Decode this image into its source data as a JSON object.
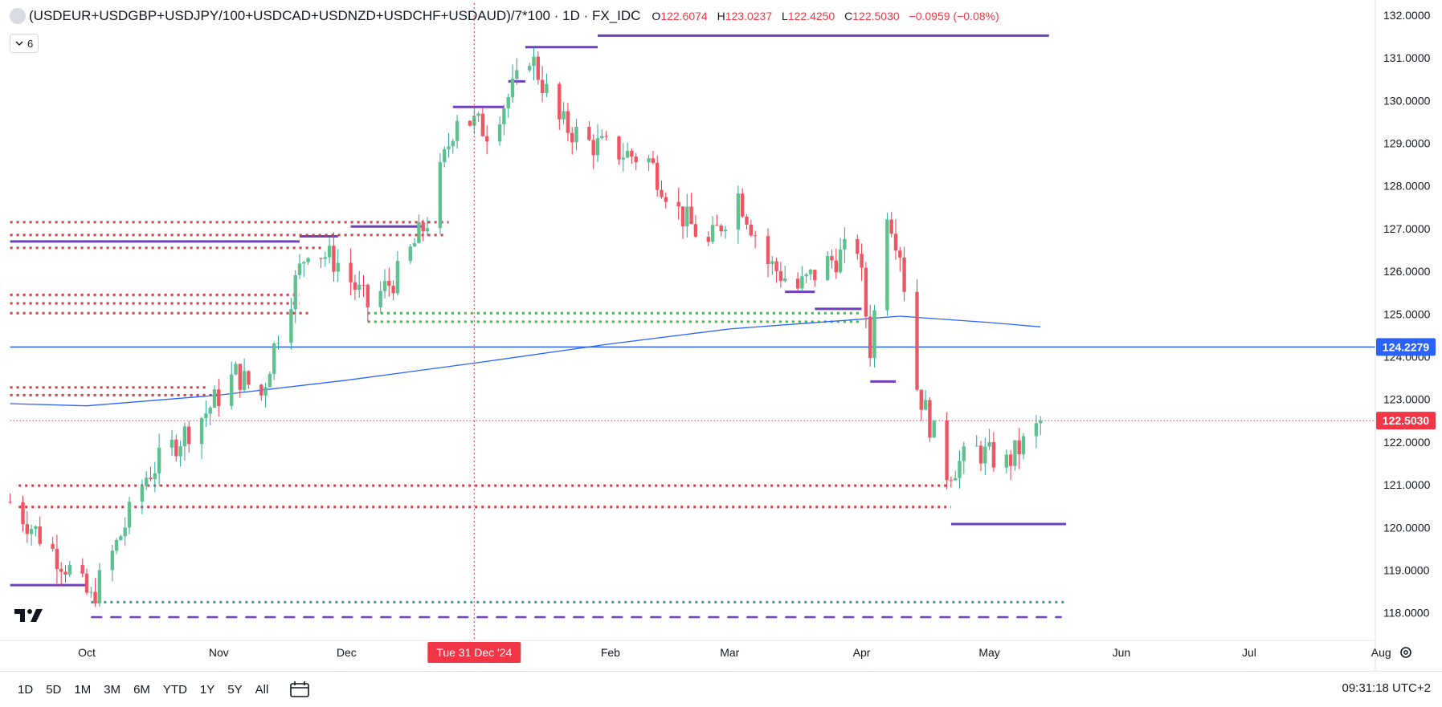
{
  "legend": {
    "symbol": "(USDEUR+USDGBP+USDJPY/100+USDCAD+USDNZD+USDCHF+USDAUD)/7*100 · 1D · FX_IDC",
    "open_label": "O",
    "open": "122.6074",
    "high_label": "H",
    "high": "123.0237",
    "low_label": "L",
    "low": "122.4250",
    "close_label": "C",
    "close": "122.5030",
    "change": "−0.0959 (−0.08%)"
  },
  "indicator_toggle": {
    "icon": "chevron-down-icon",
    "count": "6"
  },
  "bottom_bar": {
    "ranges": [
      "1D",
      "5D",
      "1M",
      "3M",
      "6M",
      "YTD",
      "1Y",
      "5Y",
      "All"
    ],
    "clock": "09:31:18 UTC+2"
  },
  "colors": {
    "up": "#26a69a",
    "down": "#f23645",
    "up_body": "#5fc18d",
    "down_body": "#ef5664",
    "ma": "#2962ff",
    "level_line": "#2962ff",
    "resistance_dotted": "#e0333d",
    "support_dotted": "#4caf50",
    "teal_dotted": "#26a69a",
    "purple": "#6f3fbf"
  },
  "chart_data": {
    "type": "candlestick",
    "title": "(USDEUR+USDGBP+USDJPY/100+USDCAD+USDNZD+USDCHF+USDAUD)/7*100",
    "interval": "1D",
    "source": "FX_IDC",
    "x_axis": {
      "tick_labels": [
        "Oct",
        "Nov",
        "Dec",
        "Tue 31 Dec '24",
        "Feb",
        "Mar",
        "Apr",
        "May",
        "Jun",
        "Jul",
        "Aug"
      ],
      "tick_dates": [
        "2024-10-01",
        "2024-11-01",
        "2024-12-01",
        "2024-12-31",
        "2025-02-01",
        "2025-03-01",
        "2025-04-01",
        "2025-05-01",
        "2025-06-01",
        "2025-07-01",
        "2025-08-01"
      ],
      "highlighted_label": "Tue 31 Dec '24",
      "range": [
        "2024-09-13",
        "2025-08-15"
      ]
    },
    "y_axis": {
      "tick_labels": [
        "132.0000",
        "131.0000",
        "130.0000",
        "129.0000",
        "128.0000",
        "127.0000",
        "126.0000",
        "125.0000",
        "124.0000",
        "123.0000",
        "122.0000",
        "121.0000",
        "120.0000",
        "119.0000",
        "118.0000"
      ],
      "range": [
        117.7,
        132.3
      ],
      "position": "right"
    },
    "price_tags": [
      {
        "label": "124.2279",
        "value": 124.2279,
        "color": "#2962ff"
      },
      {
        "label": "122.5030",
        "value": 122.503,
        "color": "#f23645"
      }
    ],
    "close_path": [
      {
        "date": "2024-09-13",
        "close": 120.6
      },
      {
        "date": "2024-09-20",
        "close": 119.8
      },
      {
        "date": "2024-09-27",
        "close": 119.0
      },
      {
        "date": "2024-10-02",
        "close": 118.3
      },
      {
        "date": "2024-10-08",
        "close": 119.6
      },
      {
        "date": "2024-10-15",
        "close": 121.2
      },
      {
        "date": "2024-10-22",
        "close": 122.0
      },
      {
        "date": "2024-10-29",
        "close": 122.7
      },
      {
        "date": "2024-11-05",
        "close": 123.6
      },
      {
        "date": "2024-11-11",
        "close": 123.1
      },
      {
        "date": "2024-11-15",
        "close": 124.6
      },
      {
        "date": "2024-11-22",
        "close": 126.6
      },
      {
        "date": "2024-11-29",
        "close": 126.2
      },
      {
        "date": "2024-12-06",
        "close": 125.2
      },
      {
        "date": "2024-12-13",
        "close": 125.9
      },
      {
        "date": "2024-12-20",
        "close": 127.2
      },
      {
        "date": "2024-12-27",
        "close": 129.7
      },
      {
        "date": "2025-01-03",
        "close": 129.3
      },
      {
        "date": "2025-01-10",
        "close": 130.4
      },
      {
        "date": "2025-01-13",
        "close": 131.1
      },
      {
        "date": "2025-01-20",
        "close": 129.5
      },
      {
        "date": "2025-01-27",
        "close": 129.0
      },
      {
        "date": "2025-02-03",
        "close": 128.8
      },
      {
        "date": "2025-02-10",
        "close": 128.6
      },
      {
        "date": "2025-02-17",
        "close": 127.4
      },
      {
        "date": "2025-02-24",
        "close": 126.6
      },
      {
        "date": "2025-03-03",
        "close": 127.8
      },
      {
        "date": "2025-03-10",
        "close": 126.2
      },
      {
        "date": "2025-03-17",
        "close": 125.6
      },
      {
        "date": "2025-03-24",
        "close": 126.2
      },
      {
        "date": "2025-03-31",
        "close": 126.6
      },
      {
        "date": "2025-04-03",
        "close": 124.2
      },
      {
        "date": "2025-04-07",
        "close": 127.5
      },
      {
        "date": "2025-04-10",
        "close": 126.5
      },
      {
        "date": "2025-04-14",
        "close": 123.3
      },
      {
        "date": "2025-04-21",
        "close": 121.3
      },
      {
        "date": "2025-04-28",
        "close": 121.8
      },
      {
        "date": "2025-05-05",
        "close": 121.5
      },
      {
        "date": "2025-05-12",
        "close": 122.3
      },
      {
        "date": "2025-05-13",
        "close": 122.503
      }
    ],
    "moving_average": [
      {
        "date": "2024-09-13",
        "value": 122.9
      },
      {
        "date": "2024-10-01",
        "value": 122.85
      },
      {
        "date": "2024-11-01",
        "value": 123.1
      },
      {
        "date": "2024-12-01",
        "value": 123.45
      },
      {
        "date": "2024-12-31",
        "value": 123.85
      },
      {
        "date": "2025-02-01",
        "value": 124.3
      },
      {
        "date": "2025-03-01",
        "value": 124.65
      },
      {
        "date": "2025-04-01",
        "value": 124.88
      },
      {
        "date": "2025-04-10",
        "value": 124.95
      },
      {
        "date": "2025-05-01",
        "value": 124.8
      },
      {
        "date": "2025-05-13",
        "value": 124.7
      }
    ],
    "horizontal_lines": [
      {
        "value": 124.2279,
        "style": "solid",
        "color": "#2962ff",
        "from": "2024-09-13",
        "to": "end"
      },
      {
        "value": 122.503,
        "style": "dotted-thin",
        "color": "#f23645",
        "from": "2024-09-13",
        "to": "end"
      },
      {
        "value": 131.52,
        "style": "solid",
        "color": "#6f3fbf",
        "from": "2025-01-29",
        "to": "2025-05-15"
      },
      {
        "value": 131.25,
        "style": "solid",
        "color": "#6f3fbf",
        "from": "2025-01-12",
        "to": "2025-01-29"
      },
      {
        "value": 130.45,
        "style": "solid",
        "color": "#6f3fbf",
        "from": "2025-01-08",
        "to": "2025-01-12"
      },
      {
        "value": 129.85,
        "style": "solid",
        "color": "#6f3fbf",
        "from": "2024-12-26",
        "to": "2025-01-07"
      },
      {
        "value": 127.05,
        "style": "solid",
        "color": "#6f3fbf",
        "from": "2024-12-02",
        "to": "2024-12-19"
      },
      {
        "value": 126.82,
        "style": "solid",
        "color": "#6f3fbf",
        "from": "2024-11-20",
        "to": "2024-11-29"
      },
      {
        "value": 126.7,
        "style": "solid",
        "color": "#6f3fbf",
        "from": "2024-09-13",
        "to": "2024-11-20"
      },
      {
        "value": 125.52,
        "style": "solid",
        "color": "#6f3fbf",
        "from": "2025-03-14",
        "to": "2025-03-21"
      },
      {
        "value": 125.12,
        "style": "solid",
        "color": "#6f3fbf",
        "from": "2025-03-21",
        "to": "2025-04-01"
      },
      {
        "value": 123.42,
        "style": "solid",
        "color": "#6f3fbf",
        "from": "2025-04-03",
        "to": "2025-04-09"
      },
      {
        "value": 120.08,
        "style": "solid",
        "color": "#6f3fbf",
        "from": "2025-04-22",
        "to": "2025-05-19"
      },
      {
        "value": 118.65,
        "style": "solid",
        "color": "#6f3fbf",
        "from": "2024-09-13",
        "to": "2024-10-01"
      },
      {
        "value": 117.9,
        "style": "dashed",
        "color": "#6f3fbf",
        "from": "2024-10-02",
        "to": "2025-05-18"
      },
      {
        "value": 127.15,
        "style": "dotted",
        "color": "#e0333d",
        "from": "2024-09-13",
        "to": "2024-12-25"
      },
      {
        "value": 126.85,
        "style": "dotted",
        "color": "#e0333d",
        "from": "2024-09-13",
        "to": "2024-12-24"
      },
      {
        "value": 126.55,
        "style": "dotted",
        "color": "#e0333d",
        "from": "2024-09-13",
        "to": "2024-11-25"
      },
      {
        "value": 125.45,
        "style": "dotted",
        "color": "#e0333d",
        "from": "2024-09-13",
        "to": "2024-11-20"
      },
      {
        "value": 125.25,
        "style": "dotted",
        "color": "#e0333d",
        "from": "2024-09-13",
        "to": "2024-11-20"
      },
      {
        "value": 125.02,
        "style": "dotted",
        "color": "#e0333d",
        "from": "2024-09-13",
        "to": "2024-11-22"
      },
      {
        "value": 123.28,
        "style": "dotted",
        "color": "#e0333d",
        "from": "2024-09-13",
        "to": "2024-10-29"
      },
      {
        "value": 123.1,
        "style": "dotted",
        "color": "#e0333d",
        "from": "2024-09-13",
        "to": "2024-11-01"
      },
      {
        "value": 120.98,
        "style": "dotted",
        "color": "#e0333d",
        "from": "2024-09-15",
        "to": "2025-04-22"
      },
      {
        "value": 120.48,
        "style": "dotted",
        "color": "#e0333d",
        "from": "2024-09-15",
        "to": "2025-04-22"
      },
      {
        "value": 125.02,
        "style": "dotted",
        "color": "#4caf50",
        "from": "2024-12-06",
        "to": "2025-04-01"
      },
      {
        "value": 124.82,
        "style": "dotted",
        "color": "#4caf50",
        "from": "2024-12-06",
        "to": "2025-04-01"
      },
      {
        "value": 118.25,
        "style": "dotted",
        "color": "#26a69a",
        "from": "2024-10-02",
        "to": "2025-05-19"
      }
    ],
    "crosshair_date": "2024-12-31",
    "last_close": 122.503,
    "grid": false
  }
}
